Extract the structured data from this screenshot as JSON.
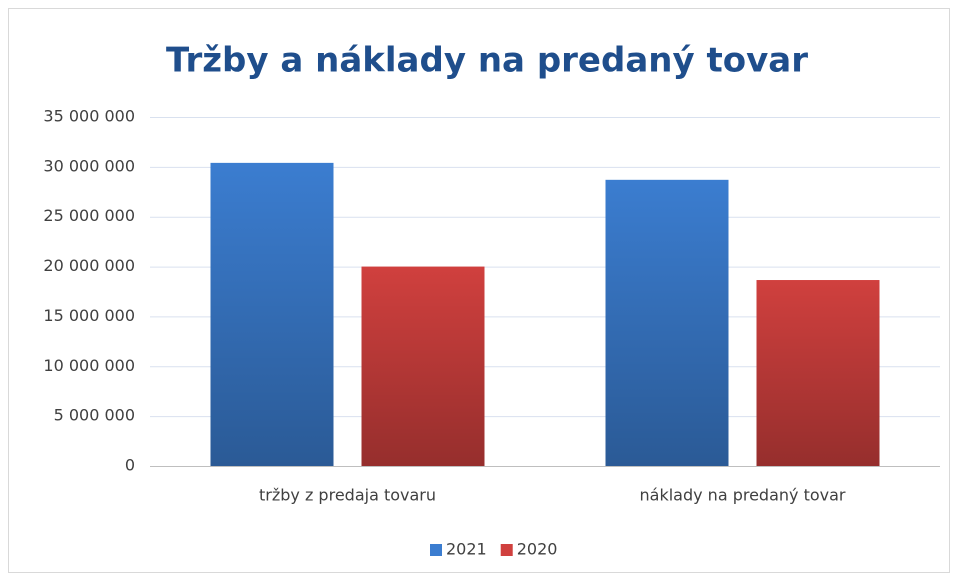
{
  "chart_data": {
    "type": "bar",
    "title": "Tržby a náklady na predaný tovar",
    "categories": [
      "tržby z predaja tovaru",
      "náklady na predaný tovar"
    ],
    "series": [
      {
        "name": "2021",
        "color": "#3b7dd0",
        "values": [
          30400000,
          28700000
        ]
      },
      {
        "name": "2020",
        "color": "#d0403e",
        "values": [
          20000000,
          18650000
        ]
      }
    ],
    "ylim": [
      0,
      35000000
    ],
    "yticks": [
      0,
      {
        "value": 5000000,
        "label": "5 000 000"
      },
      {
        "value": 10000000,
        "label": "10 000 000"
      },
      {
        "value": 15000000,
        "label": "15 000 000"
      },
      {
        "value": 20000000,
        "label": "20 000 000"
      },
      {
        "value": 25000000,
        "label": "25 000 000"
      },
      {
        "value": 30000000,
        "label": "30 000 000"
      },
      {
        "value": 35000000,
        "label": "35 000 000"
      }
    ],
    "grid": true,
    "legend": "bottom"
  }
}
